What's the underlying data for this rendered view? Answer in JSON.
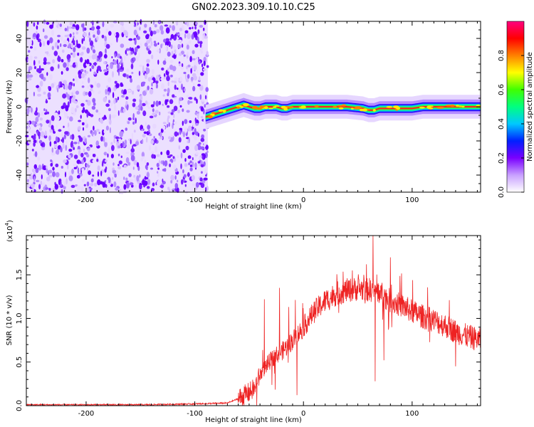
{
  "chart_data": [
    {
      "type": "heatmap",
      "title": "GN02.2023.309.10.10.C25",
      "xlabel": "Height of straight line (km)",
      "ylabel": "Frequency (Hz)",
      "xlim": [
        -255,
        163
      ],
      "ylim": [
        -50,
        50
      ],
      "x_ticks": [
        -200,
        -100,
        0,
        100
      ],
      "y_ticks": [
        -40,
        -20,
        0,
        20,
        40
      ],
      "noise_region_x": [
        -255,
        -88
      ],
      "signal_track": {
        "x": [
          -90,
          -85,
          -80,
          -75,
          -70,
          -65,
          -60,
          -55,
          -50,
          -45,
          -40,
          -35,
          -30,
          -25,
          -20,
          -15,
          -10,
          -5,
          0,
          20,
          40,
          55,
          60,
          65,
          70,
          80,
          90,
          100,
          110,
          120,
          140,
          163
        ],
        "frequency": [
          -6,
          -5,
          -4,
          -3,
          -2,
          -1,
          0,
          1,
          0,
          -1,
          -1,
          0,
          0,
          0,
          -1,
          -1,
          0,
          0,
          0,
          0,
          0,
          -1,
          -2,
          -2,
          -1,
          -1,
          -1,
          -1,
          0,
          0,
          0,
          0
        ]
      },
      "colorbar": {
        "label": "Normalized spectral amplitude",
        "ticks": [
          "0.0",
          "0.2",
          "0.4",
          "0.6",
          "0.8"
        ],
        "range": [
          0,
          1
        ],
        "colors": [
          "#ffffff",
          "#c8a0ff",
          "#7a00ff",
          "#0020ff",
          "#00c8ff",
          "#00ff80",
          "#40ff00",
          "#ffff00",
          "#ff8000",
          "#ff0000",
          "#ff0080"
        ]
      }
    },
    {
      "type": "line",
      "xlabel": "Height of straight line (km)",
      "ylabel": "SNR (10 * v/v)",
      "multiplier": "(x10",
      "multiplier_exp": "4",
      "multiplier_close": ")",
      "xlim": [
        -255,
        163
      ],
      "ylim": [
        0,
        1.95
      ],
      "x_ticks": [
        -200,
        -100,
        0,
        100
      ],
      "y_ticks": [
        "0.0",
        "0.5",
        "1.0",
        "1.5"
      ],
      "line_color": "#ee2222",
      "x": [
        -255,
        -200,
        -150,
        -100,
        -70,
        -60,
        -50,
        -45,
        -40,
        -35,
        -30,
        -25,
        -20,
        -15,
        -10,
        -5,
        0,
        10,
        20,
        30,
        40,
        50,
        60,
        70,
        80,
        90,
        100,
        110,
        120,
        130,
        140,
        150,
        163
      ],
      "y": [
        0.01,
        0.01,
        0.01,
        0.02,
        0.03,
        0.08,
        0.15,
        0.2,
        0.35,
        0.45,
        0.52,
        0.58,
        0.62,
        0.68,
        0.75,
        0.82,
        0.9,
        1.08,
        1.2,
        1.28,
        1.32,
        1.34,
        1.33,
        1.3,
        1.2,
        1.15,
        1.08,
        1.02,
        0.98,
        0.92,
        0.85,
        0.8,
        0.75
      ],
      "spikes": [
        {
          "x": -43,
          "y": 0.0
        },
        {
          "x": -36,
          "y": 1.22
        },
        {
          "x": -22,
          "y": 1.35
        },
        {
          "x": -6,
          "y": 0.12
        },
        {
          "x": 45,
          "y": 1.55
        },
        {
          "x": 58,
          "y": 1.62
        },
        {
          "x": 64,
          "y": 1.95
        },
        {
          "x": 66,
          "y": 0.28
        },
        {
          "x": 74,
          "y": 0.52
        },
        {
          "x": 80,
          "y": 1.7
        },
        {
          "x": 140,
          "y": 0.45
        }
      ]
    }
  ]
}
